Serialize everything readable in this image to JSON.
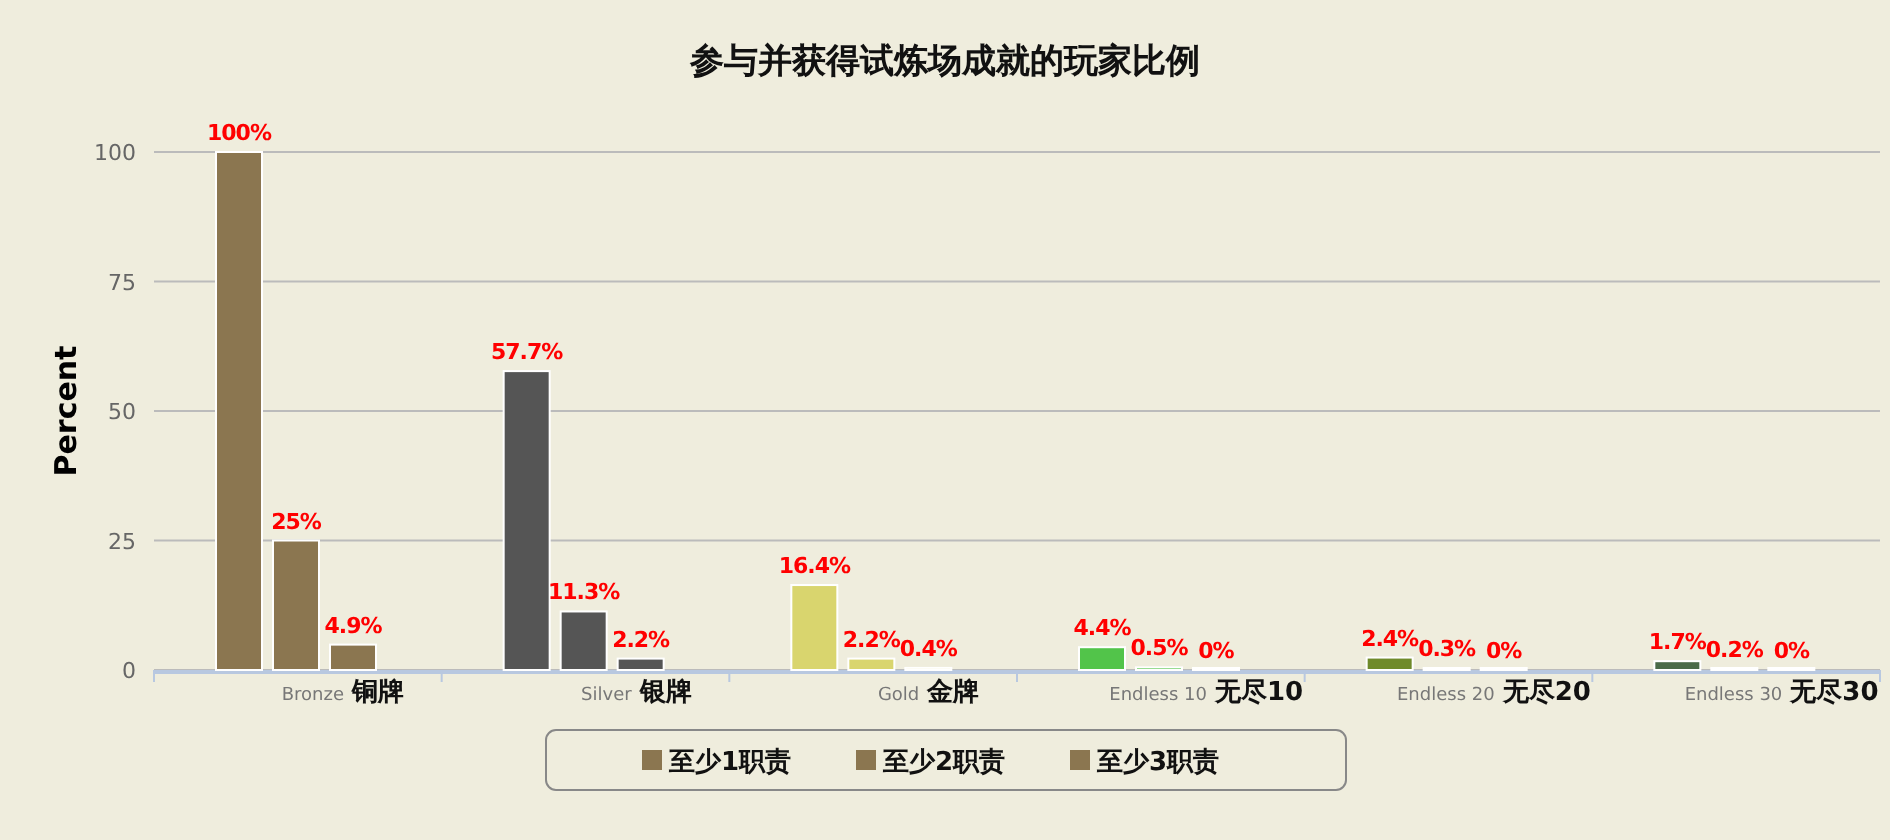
{
  "chart_data": {
    "type": "bar",
    "title": "参与并获得试炼场成就的玩家比例",
    "ylabel": "Percent",
    "categories": [
      "Bronze",
      "Silver",
      "Gold",
      "Endless 10",
      "Endless 20",
      "Endless 30"
    ],
    "annotations": [
      "铜牌",
      "银牌",
      "金牌",
      "无尽10",
      "无尽20",
      "无尽30"
    ],
    "series": [
      {
        "name": "至少1职责",
        "colors": [
          "#8b7650",
          "#555555",
          "#d9d56e",
          "#52c44a",
          "#6f8a2a",
          "#4a6a48"
        ],
        "values": [
          100,
          57.7,
          16.4,
          4.4,
          2.4,
          1.7
        ],
        "value_labels": [
          "100%",
          "57.7%",
          "16.4%",
          "4.4%",
          "2.4%",
          "1.7%"
        ]
      },
      {
        "name": "至少2职责",
        "colors": [
          "#8b7650",
          "#555555",
          "#d9d56e",
          "#52c44a",
          "#6f8a2a",
          "#4a6a48"
        ],
        "values": [
          25,
          11.3,
          2.2,
          0.5,
          0.3,
          0.2
        ],
        "value_labels": [
          "25%",
          "11.3%",
          "2.2%",
          "0.5%",
          "0.3%",
          "0.2%"
        ]
      },
      {
        "name": "至少3职责",
        "colors": [
          "#8b7650",
          "#555555",
          "#d9d56e",
          "#52c44a",
          "#6f8a2a",
          "#4a6a48"
        ],
        "values": [
          4.9,
          2.2,
          0.4,
          0,
          0,
          0
        ],
        "value_labels": [
          "4.9%",
          "2.2%",
          "0.4%",
          "0%",
          "0%",
          "0%"
        ]
      }
    ],
    "ylim": [
      0,
      100
    ],
    "yticks": [
      0,
      25,
      50,
      75,
      100
    ],
    "grid": "y",
    "legend": "bottom"
  }
}
